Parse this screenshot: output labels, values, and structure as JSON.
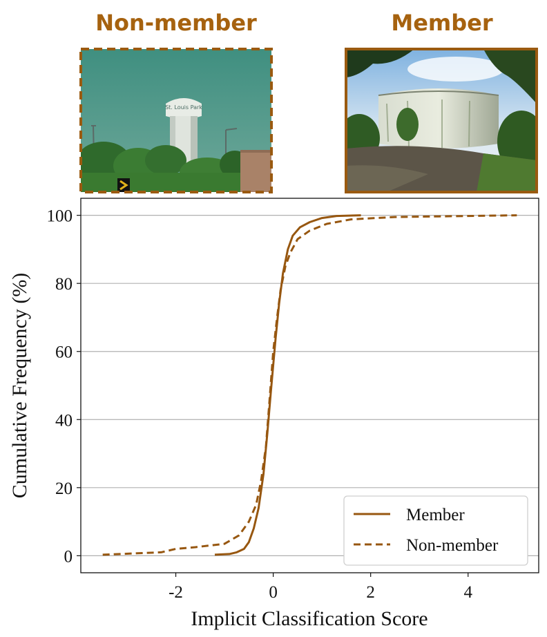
{
  "colors": {
    "series": "#975710",
    "title": "#a6620f",
    "grid": "#b0b0b0",
    "axis": "#111111"
  },
  "panels": {
    "left": {
      "title": "Non-member",
      "image_icon": "water-tower-photo"
    },
    "right": {
      "title": "Member",
      "image_icon": "storage-tank-photo"
    }
  },
  "chart_data": {
    "type": "line",
    "title": "",
    "xlabel": "Implicit Classification Score",
    "ylabel": "Cumulative Frequency (%)",
    "xlim": [
      -3.95,
      5.45
    ],
    "ylim": [
      -5,
      105
    ],
    "xticks": [
      -2,
      0,
      2,
      4
    ],
    "xtick_labels": [
      "-2",
      "0",
      "2",
      "4"
    ],
    "yticks": [
      0,
      20,
      40,
      60,
      80,
      100
    ],
    "ytick_labels": [
      "0",
      "20",
      "40",
      "60",
      "80",
      "100"
    ],
    "grid": "y",
    "legend": {
      "position": "lower-right"
    },
    "series": [
      {
        "name": "Member",
        "style": "solid",
        "x": [
          -1.2,
          -0.9,
          -0.75,
          -0.6,
          -0.5,
          -0.4,
          -0.3,
          -0.2,
          -0.12,
          -0.05,
          0.0,
          0.05,
          0.12,
          0.2,
          0.3,
          0.4,
          0.55,
          0.75,
          1.0,
          1.3,
          1.8
        ],
        "y": [
          0.3,
          0.5,
          1.0,
          2.0,
          4.0,
          8.0,
          14.0,
          24.0,
          36.0,
          48.0,
          56.0,
          64.0,
          74.0,
          83.0,
          90.0,
          94.0,
          96.5,
          98.0,
          99.2,
          99.8,
          100
        ]
      },
      {
        "name": "Non-member",
        "style": "dashed",
        "x": [
          -3.5,
          -2.3,
          -2.0,
          -1.6,
          -1.0,
          -0.7,
          -0.5,
          -0.35,
          -0.25,
          -0.15,
          -0.08,
          0.0,
          0.08,
          0.15,
          0.25,
          0.35,
          0.5,
          0.75,
          1.1,
          1.6,
          2.5,
          5.0
        ],
        "y": [
          0.3,
          1.0,
          2.0,
          2.5,
          3.5,
          6.0,
          10.0,
          15.0,
          22.0,
          32.0,
          45.0,
          60.0,
          70.0,
          78.0,
          85.0,
          89.0,
          93.0,
          95.5,
          97.5,
          98.8,
          99.5,
          100
        ]
      }
    ]
  }
}
